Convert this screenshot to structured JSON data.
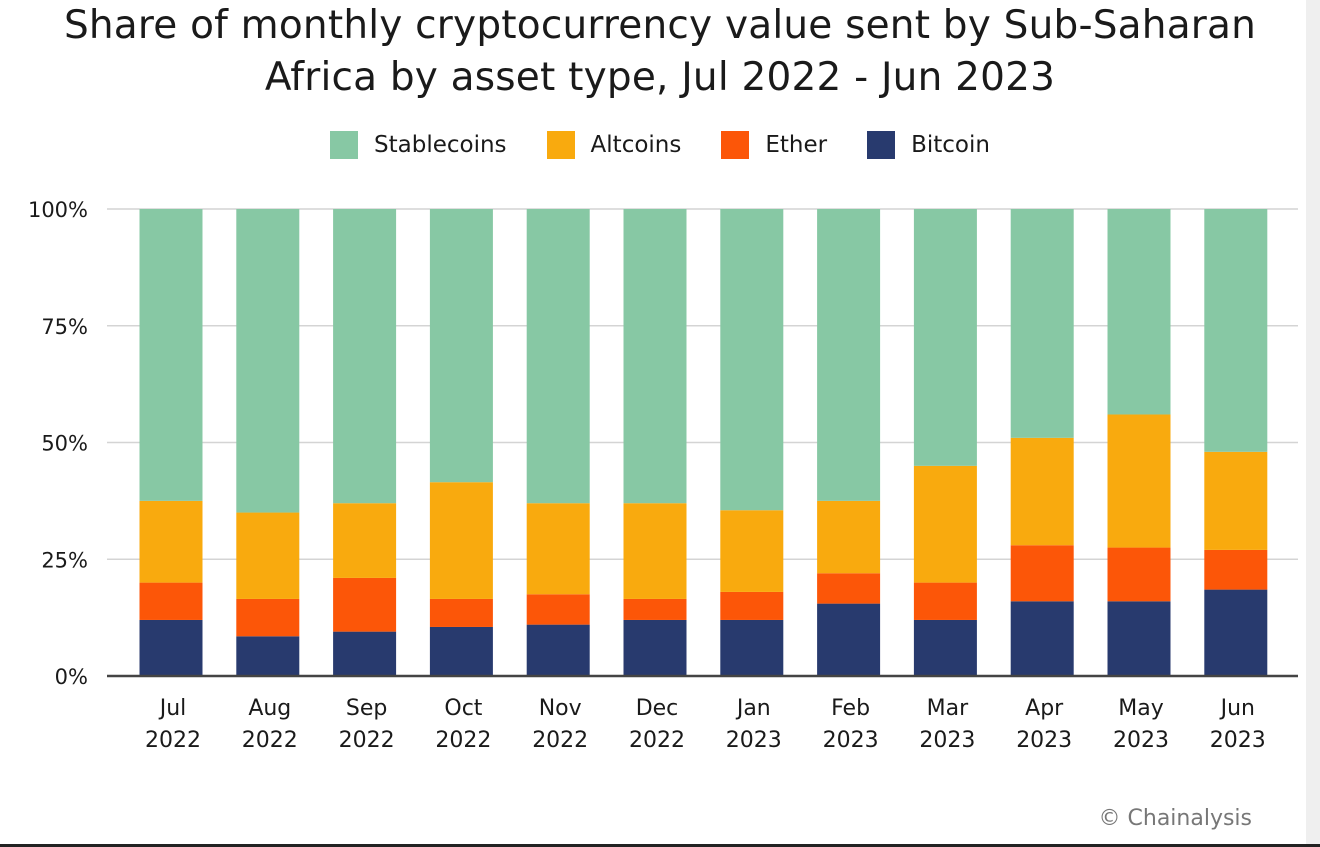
{
  "title_line1": "Share of monthly cryptocurrency value sent by Sub-Saharan",
  "title_line2": "Africa by asset type, Jul 2022 - Jun 2023",
  "credit": "© Chainalysis",
  "colors": {
    "stablecoins": "#87c8a4",
    "altcoins": "#f9aa0e",
    "ether": "#fc5608",
    "bitcoin": "#283a6e",
    "grid": "#d4d4d4",
    "axis": "#444444"
  },
  "chart_data": {
    "type": "bar",
    "stacked": true,
    "title": "Share of monthly cryptocurrency value sent by Sub-Saharan Africa by asset type, Jul 2022 - Jun 2023",
    "categories": [
      [
        "Jul",
        "2022"
      ],
      [
        "Aug",
        "2022"
      ],
      [
        "Sep",
        "2022"
      ],
      [
        "Oct",
        "2022"
      ],
      [
        "Nov",
        "2022"
      ],
      [
        "Dec",
        "2022"
      ],
      [
        "Jan",
        "2023"
      ],
      [
        "Feb",
        "2023"
      ],
      [
        "Mar",
        "2023"
      ],
      [
        "Apr",
        "2023"
      ],
      [
        "May",
        "2023"
      ],
      [
        "Jun",
        "2023"
      ]
    ],
    "series": [
      {
        "name": "Bitcoin",
        "key": "bitcoin",
        "values": [
          12,
          8.5,
          9.5,
          10.5,
          11,
          12,
          12,
          15.5,
          12,
          16,
          16,
          18.5
        ]
      },
      {
        "name": "Ether",
        "key": "ether",
        "values": [
          8,
          8,
          11.5,
          6,
          6.5,
          4.5,
          6,
          6.5,
          8,
          12,
          11.5,
          8.5
        ]
      },
      {
        "name": "Altcoins",
        "key": "altcoins",
        "values": [
          17.5,
          18.5,
          16,
          25,
          19.5,
          20.5,
          17.5,
          15.5,
          25,
          23,
          28.5,
          21
        ]
      },
      {
        "name": "Stablecoins",
        "key": "stablecoins",
        "values": [
          62.5,
          65,
          63,
          58.5,
          63,
          63,
          64.5,
          62.5,
          55,
          49,
          44,
          52
        ]
      }
    ],
    "legend": [
      {
        "name": "Stablecoins",
        "key": "stablecoins"
      },
      {
        "name": "Altcoins",
        "key": "altcoins"
      },
      {
        "name": "Ether",
        "key": "ether"
      },
      {
        "name": "Bitcoin",
        "key": "bitcoin"
      }
    ],
    "yticks": [
      0,
      25,
      50,
      75,
      100
    ],
    "ytick_labels": [
      "0%",
      "25%",
      "50%",
      "75%",
      "100%"
    ],
    "ylim": [
      0,
      100
    ],
    "xlabel": "",
    "ylabel": "",
    "grid": true,
    "legend_position": "top-center"
  }
}
